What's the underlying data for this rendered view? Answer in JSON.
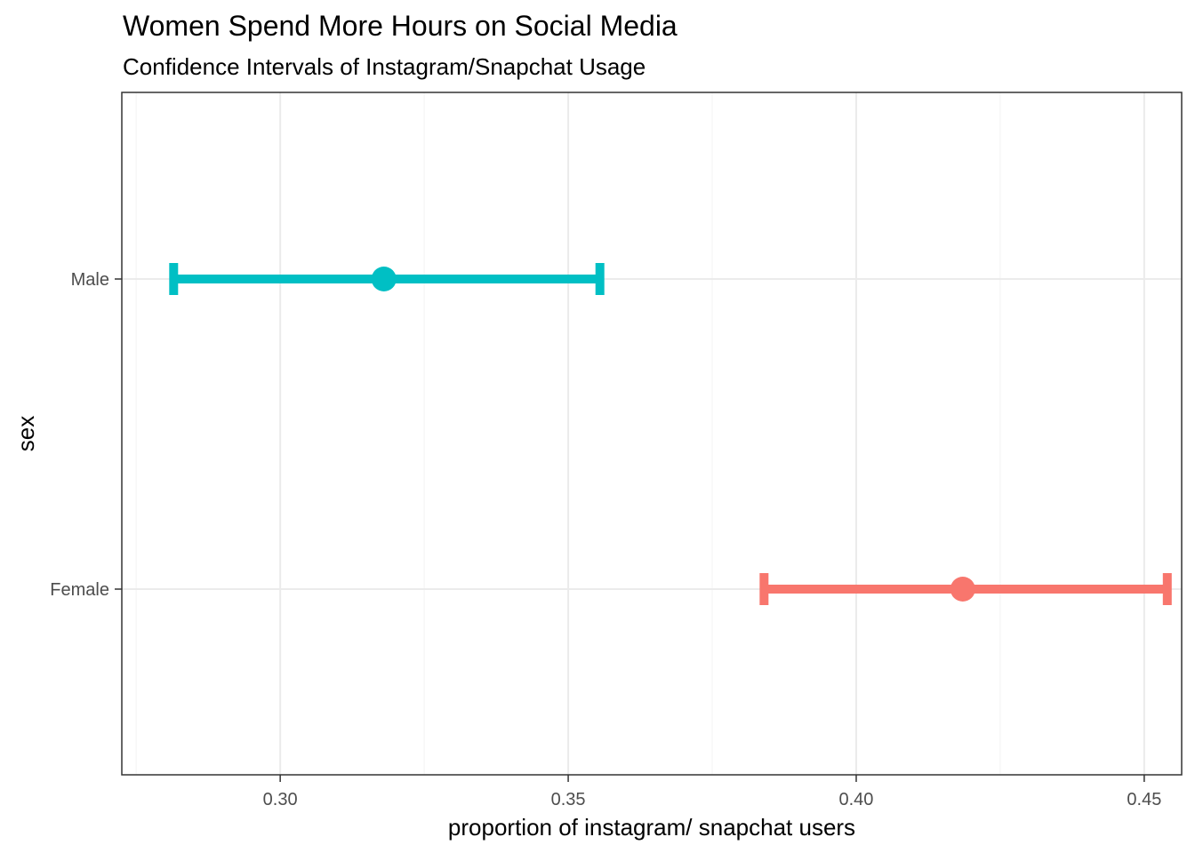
{
  "chart_data": {
    "type": "errorbar",
    "title": "Women Spend More Hours on Social Media",
    "subtitle": "Confidence Intervals of Instagram/Snapchat Usage",
    "xlabel": "proportion of instagram/ snapchat users",
    "ylabel": "sex",
    "xlim": [
      0.2725,
      0.4565
    ],
    "x_ticks": [
      0.3,
      0.35,
      0.4,
      0.45
    ],
    "x_tick_labels": [
      "0.30",
      "0.35",
      "0.40",
      "0.45"
    ],
    "categories": [
      "Male",
      "Female"
    ],
    "grid": true,
    "legend": "none",
    "series": [
      {
        "category": "Male",
        "estimate": 0.318,
        "lower": 0.2815,
        "upper": 0.3555,
        "color": "#00BFC4"
      },
      {
        "category": "Female",
        "estimate": 0.4185,
        "lower": 0.384,
        "upper": 0.454,
        "color": "#F8766D"
      }
    ]
  },
  "colors": {
    "panel_border": "#333333",
    "grid_major": "#ebebeb",
    "grid_minor": "#f5f5f5",
    "tick": "#333333"
  }
}
